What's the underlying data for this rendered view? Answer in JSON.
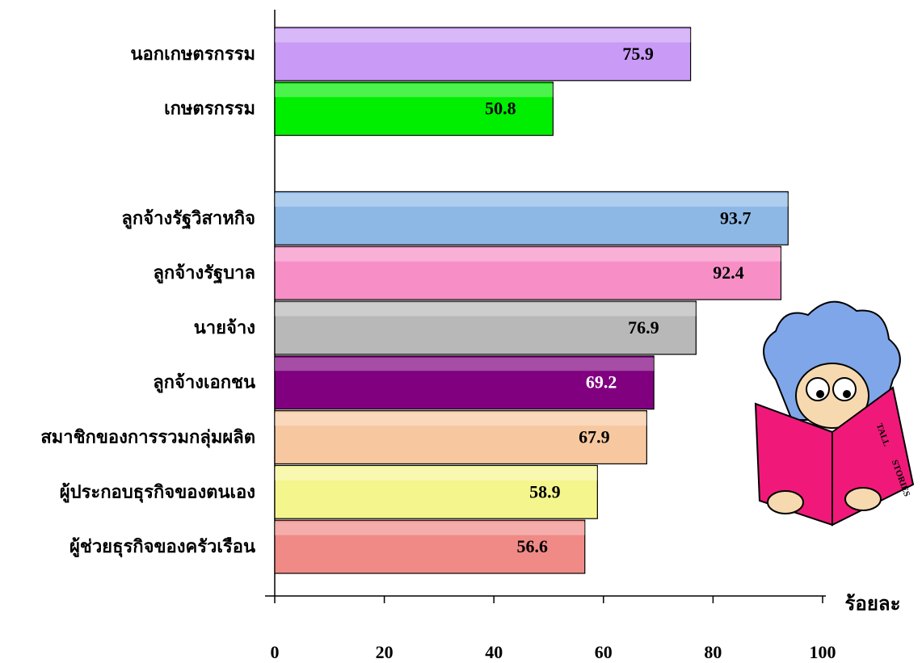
{
  "chart_data": {
    "type": "bar",
    "orientation": "horizontal",
    "categories": [
      "นอกเกษตรกรรม",
      "เกษตรกรรม",
      null,
      "ลูกจ้างรัฐวิสาหกิจ",
      "ลูกจ้างรัฐบาล",
      "นายจ้าง",
      "ลูกจ้างเอกชน",
      "สมาชิกของการรวมกลุ่มผลิต",
      "ผู้ประกอบธุรกิจของตนเอง",
      "ผู้ช่วยธุรกิจของครัวเรือน"
    ],
    "values": [
      75.9,
      50.8,
      null,
      93.7,
      92.4,
      76.9,
      69.2,
      67.9,
      58.9,
      56.6
    ],
    "colors": [
      "#c99af6",
      "#00ee00",
      null,
      "#8db8e6",
      "#f78fc6",
      "#b8b8b8",
      "#800080",
      "#f7c8a0",
      "#f5f58e",
      "#f08a86"
    ],
    "value_label_colors": [
      "#000000",
      "#000000",
      null,
      "#000000",
      "#000000",
      "#000000",
      "#ffffff",
      "#000000",
      "#000000",
      "#000000"
    ],
    "xlabel": "ร้อยละ",
    "xlim": [
      0,
      100
    ],
    "xticks": [
      0,
      20,
      40,
      60,
      80,
      100
    ],
    "grid": false,
    "illustration_text": [
      "TALL",
      "STORIES"
    ]
  }
}
